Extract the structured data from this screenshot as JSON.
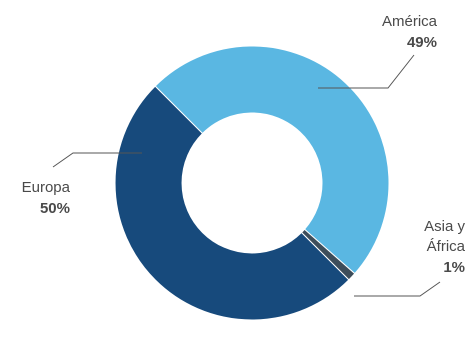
{
  "chart_data": {
    "type": "pie",
    "variant": "donut",
    "slices": [
      {
        "label": "América",
        "value": 49,
        "value_label": "49%",
        "color": "#5ab7e2"
      },
      {
        "label": "Asia y África",
        "label_lines": [
          "Asia y",
          "África"
        ],
        "value": 1,
        "value_label": "1%",
        "color": "#3d4d5a"
      },
      {
        "label": "Europa",
        "value": 50,
        "value_label": "50%",
        "color": "#174a7c"
      }
    ],
    "leader_color": "#555555",
    "legend": "none",
    "grid": false
  }
}
